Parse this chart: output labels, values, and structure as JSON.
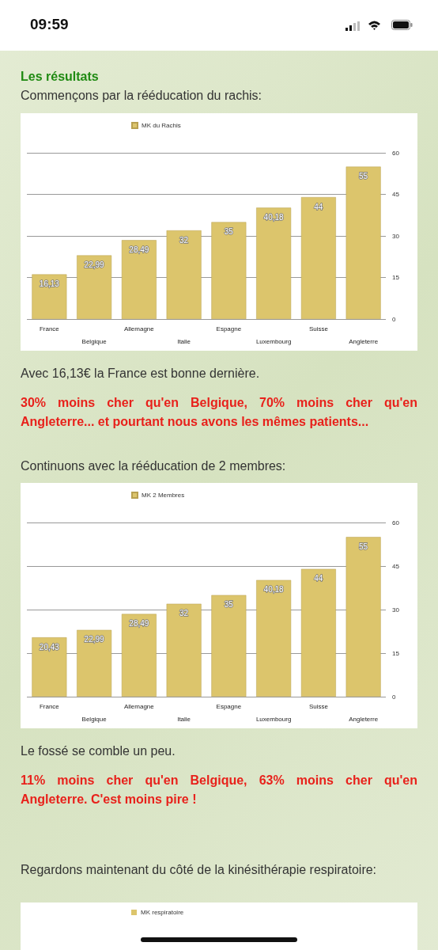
{
  "chart_data": [
    {
      "type": "other",
      "annotations": [
        "09:59"
      ]
    },
    {
      "type": "bar",
      "title": "Les résultats",
      "subtitle": "Commençons par la rééducation du rachis:",
      "categories": [
        "France",
        "Belgique",
        "Allemagne",
        "Italie",
        "Espagne",
        "Luxembourg",
        "Suisse",
        "Angleterre"
      ],
      "series": [
        {
          "name": "MK du Rachis",
          "color": "#dcc56c",
          "values": [
            16.13,
            22.99,
            28.49,
            32,
            35,
            40.18,
            44,
            55
          ],
          "value_labels": [
            "16,13",
            "22,99",
            "28,49",
            "32",
            "35",
            "40,18",
            "44",
            "55"
          ]
        }
      ],
      "ylim": [
        0,
        60
      ],
      "yticks": [
        0,
        15,
        30,
        45,
        60
      ],
      "grid": "y",
      "legend": "top left",
      "annotations": [
        "Avec 16,13€ la France est bonne dernière.",
        "30% moins cher qu'en Belgique, 70% moins cher qu'en Angleterre... et pourtant nous avons les mêmes patients..."
      ]
    },
    {
      "type": "bar",
      "subtitle": "Continuons avec la rééducation de 2 membres:",
      "categories": [
        "France",
        "Belgique",
        "Allemagne",
        "Italie",
        "Espagne",
        "Luxembourg",
        "Suisse",
        "Angleterre"
      ],
      "series": [
        {
          "name": "MK 2 Membres",
          "color": "#dcc56c",
          "values": [
            20.43,
            22.99,
            28.49,
            32,
            35,
            40.18,
            44,
            55
          ],
          "value_labels": [
            "20,43",
            "22,99",
            "28,49",
            "32",
            "35",
            "40,18",
            "44",
            "55"
          ]
        }
      ],
      "ylim": [
        0,
        60
      ],
      "yticks": [
        0,
        15,
        30,
        45,
        60
      ],
      "grid": "y",
      "legend": "top left",
      "annotations": [
        "Le fossé se comble un peu.",
        "11% moins cher qu'en Belgique, 63% moins cher qu'en Angleterre. C'est moins pire !"
      ]
    },
    {
      "type": "other",
      "subtitle": "Regardons maintenant du côté de la kinésithérapie respiratoire:",
      "annotations": [
        "MK respiratoire"
      ]
    }
  ]
}
